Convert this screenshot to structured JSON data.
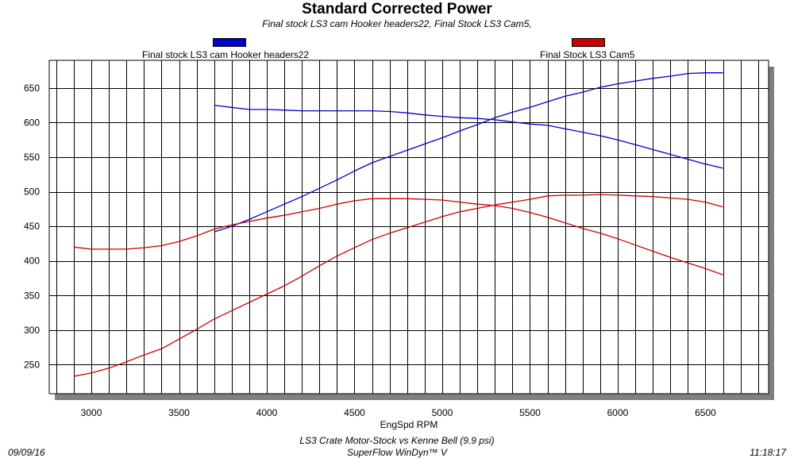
{
  "title": "Standard Corrected Power",
  "subtitle": "Final stock LS3 cam  Hooker headers22, Final Stock LS3 Cam5,",
  "footer": {
    "date": "09/09/16",
    "line1": "LS3 Crate Motor-Stock vs Kenne Bell (9.9 psi)",
    "line2": "SuperFlow WinDyn™ V",
    "time": "11:18:17"
  },
  "colors": {
    "blue": "#0000cc",
    "red": "#cc0000"
  },
  "chart_data": {
    "type": "line",
    "title": "Standard Corrected Power",
    "xlabel": "EngSpd RPM",
    "ylabel": "",
    "xlim": [
      2760,
      6860
    ],
    "ylim": [
      208,
      690
    ],
    "xticks": [
      3000,
      3500,
      4000,
      4500,
      5000,
      5500,
      6000,
      6500
    ],
    "yticks": [
      250,
      300,
      350,
      400,
      450,
      500,
      550,
      600,
      650
    ],
    "grid": true,
    "legend": [
      "Final stock LS3 cam  Hooker headers22",
      "Final Stock LS3 Cam5"
    ],
    "series": [
      {
        "name": "Final stock LS3 cam  Hooker headers22",
        "color": "#0000cc",
        "curves": [
          {
            "x": [
              3700,
              3800,
              3900,
              4000,
              4100,
              4200,
              4300,
              4400,
              4500,
              4600,
              4700,
              4800,
              4900,
              5000,
              5100,
              5200,
              5300,
              5400,
              5500,
              5600,
              5700,
              5800,
              5900,
              6000,
              6100,
              6200,
              6300,
              6400,
              6500,
              6600
            ],
            "y": [
              442,
              450,
              460,
              471,
              482,
              493,
              505,
              517,
              530,
              542,
              551,
              560,
              569,
              578,
              588,
              597,
              607,
              615,
              622,
              630,
              638,
              644,
              651,
              656,
              660,
              664,
              667,
              671,
              672,
              672
            ]
          },
          {
            "x": [
              3700,
              3800,
              3900,
              4000,
              4100,
              4200,
              4300,
              4400,
              4500,
              4600,
              4700,
              4800,
              4900,
              5000,
              5100,
              5200,
              5300,
              5400,
              5500,
              5600,
              5700,
              5800,
              5900,
              6000,
              6100,
              6200,
              6300,
              6400,
              6500,
              6600
            ],
            "y": [
              625,
              622,
              619,
              619,
              618,
              617,
              617,
              617,
              617,
              617,
              616,
              614,
              611,
              609,
              607,
              606,
              604,
              601,
              598,
              596,
              591,
              586,
              581,
              575,
              568,
              561,
              554,
              547,
              540,
              534
            ]
          }
        ]
      },
      {
        "name": "Final Stock LS3 Cam5",
        "color": "#cc0000",
        "curves": [
          {
            "x": [
              2900,
              3000,
              3100,
              3200,
              3300,
              3400,
              3500,
              3600,
              3700,
              3800,
              3900,
              4000,
              4100,
              4200,
              4300,
              4400,
              4500,
              4600,
              4700,
              4800,
              4900,
              5000,
              5100,
              5200,
              5300,
              5400,
              5500,
              5600,
              5700,
              5800,
              5900,
              6000,
              6100,
              6200,
              6300,
              6400,
              6500,
              6600
            ],
            "y": [
              420,
              417,
              417,
              417,
              419,
              422,
              428,
              436,
              446,
              452,
              457,
              462,
              466,
              471,
              476,
              482,
              487,
              490,
              490,
              490,
              489,
              488,
              485,
              482,
              480,
              476,
              470,
              463,
              455,
              447,
              440,
              432,
              423,
              414,
              405,
              397,
              389,
              380
            ]
          },
          {
            "x": [
              2900,
              3000,
              3100,
              3200,
              3300,
              3400,
              3500,
              3600,
              3700,
              3800,
              3900,
              4000,
              4100,
              4200,
              4300,
              4400,
              4500,
              4600,
              4700,
              4800,
              4900,
              5000,
              5100,
              5200,
              5300,
              5400,
              5500,
              5600,
              5700,
              5800,
              5900,
              6000,
              6100,
              6200,
              6300,
              6400,
              6500,
              6600
            ],
            "y": [
              233,
              238,
              245,
              254,
              264,
              273,
              287,
              301,
              316,
              328,
              340,
              352,
              364,
              378,
              393,
              407,
              419,
              431,
              440,
              448,
              456,
              464,
              471,
              476,
              481,
              485,
              489,
              494,
              495,
              495,
              496,
              495,
              494,
              493,
              491,
              489,
              485,
              478
            ]
          }
        ]
      }
    ]
  }
}
